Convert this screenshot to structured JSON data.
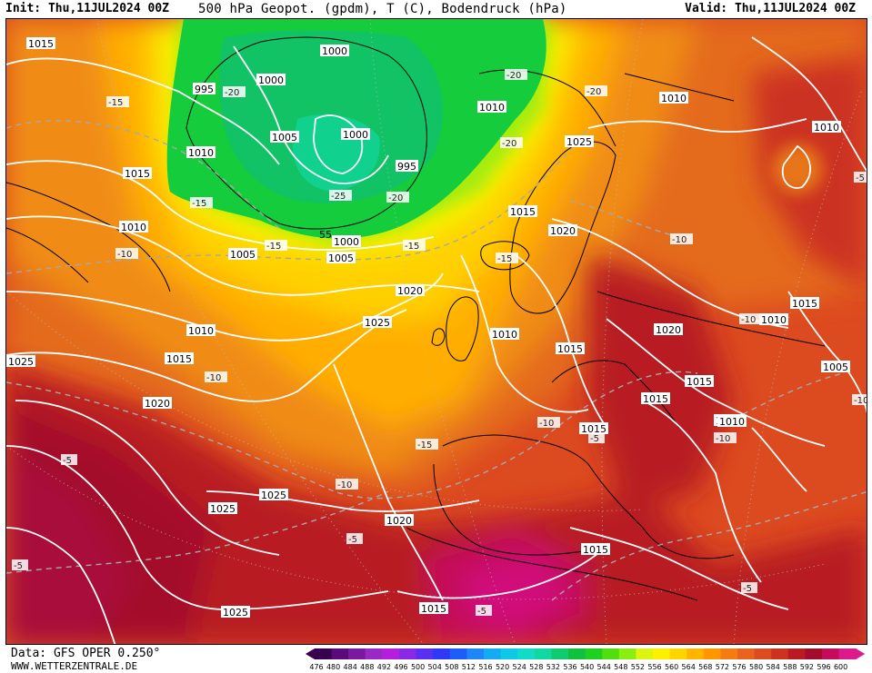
{
  "header": {
    "init": "Init: Thu,11JUL2024 00Z",
    "title": "500 hPa Geopot. (gpdm), T (C), Bodendruck (hPa)",
    "valid": "Valid: Thu,11JUL2024 00Z"
  },
  "footer": {
    "data_source": "Data: GFS OPER 0.250°",
    "website": "WWW.WETTERZENTRALE.DE"
  },
  "legend": {
    "ticks": [
      "476",
      "480",
      "484",
      "488",
      "492",
      "496",
      "500",
      "504",
      "508",
      "512",
      "516",
      "520",
      "524",
      "528",
      "532",
      "536",
      "540",
      "544",
      "548",
      "552",
      "556",
      "560",
      "564",
      "568",
      "572",
      "576",
      "580",
      "584",
      "588",
      "592",
      "596",
      "600"
    ],
    "colors": [
      "#3a0050",
      "#5a0a7a",
      "#7a1aa0",
      "#9a28c4",
      "#b41edc",
      "#8a28e6",
      "#5a30f0",
      "#3038f8",
      "#1e5ef8",
      "#1e86f8",
      "#14aaf4",
      "#10c8e8",
      "#10dcc8",
      "#10d8a0",
      "#10cc70",
      "#12c040",
      "#20d020",
      "#50e010",
      "#8aee10",
      "#dcf410",
      "#fff000",
      "#ffd400",
      "#ffb400",
      "#ff9800",
      "#f47c10",
      "#e8641e",
      "#dc4c20",
      "#cc3220",
      "#b81c22",
      "#a40c2c",
      "#c40c5a",
      "#dc1a8c"
    ],
    "arrow_left_color": "#3a0050",
    "arrow_right_color": "#dc1a8c"
  },
  "map": {
    "isobar_labels": [
      {
        "text": "1015",
        "id": "a"
      },
      {
        "text": "995",
        "id": "b"
      },
      {
        "text": "1000",
        "id": "c"
      },
      {
        "text": "1000",
        "id": "d"
      },
      {
        "text": "1010",
        "id": "e"
      },
      {
        "text": "1015",
        "id": "f"
      },
      {
        "text": "1005",
        "id": "g"
      },
      {
        "text": "1000",
        "id": "h"
      },
      {
        "text": "995",
        "id": "i"
      },
      {
        "text": "1010",
        "id": "j"
      },
      {
        "text": "1010",
        "id": "k"
      },
      {
        "text": "1025",
        "id": "l"
      },
      {
        "text": "1010",
        "id": "m"
      },
      {
        "text": "1010",
        "id": "n"
      },
      {
        "text": "1005",
        "id": "o"
      },
      {
        "text": "1000",
        "id": "p"
      },
      {
        "text": "1005",
        "id": "q"
      },
      {
        "text": "1015",
        "id": "r"
      },
      {
        "text": "1020",
        "id": "s"
      },
      {
        "text": "1020",
        "id": "t"
      },
      {
        "text": "1025",
        "id": "u"
      },
      {
        "text": "1010",
        "id": "v"
      },
      {
        "text": "1010",
        "id": "w"
      },
      {
        "text": "1015",
        "id": "x"
      },
      {
        "text": "1025",
        "id": "y"
      },
      {
        "text": "1015",
        "id": "z"
      },
      {
        "text": "1020",
        "id": "aa"
      },
      {
        "text": "1020",
        "id": "ab"
      },
      {
        "text": "1015",
        "id": "ac"
      },
      {
        "text": "1010",
        "id": "ad"
      },
      {
        "text": "1015",
        "id": "ae"
      },
      {
        "text": "1015",
        "id": "af"
      },
      {
        "text": "1005",
        "id": "ag"
      },
      {
        "text": "1010",
        "id": "ah"
      },
      {
        "text": "1015",
        "id": "ai"
      },
      {
        "text": "1025",
        "id": "aj"
      },
      {
        "text": "1025",
        "id": "ak"
      },
      {
        "text": "1020",
        "id": "al"
      },
      {
        "text": "1015",
        "id": "am"
      },
      {
        "text": "1025",
        "id": "an"
      },
      {
        "text": "1015",
        "id": "ao"
      },
      {
        "text": "1010",
        "id": "ap"
      }
    ],
    "temp_labels": [
      {
        "text": "-15"
      },
      {
        "text": "-20"
      },
      {
        "text": "-20"
      },
      {
        "text": "-20"
      },
      {
        "text": "-20"
      },
      {
        "text": "-25"
      },
      {
        "text": "-20"
      },
      {
        "text": "-15"
      },
      {
        "text": "-15"
      },
      {
        "text": "-10"
      },
      {
        "text": "-15"
      },
      {
        "text": "-15"
      },
      {
        "text": "-10"
      },
      {
        "text": "-10"
      },
      {
        "text": "-10"
      },
      {
        "text": "-15"
      },
      {
        "text": "-10"
      },
      {
        "text": "-5"
      },
      {
        "text": "-10"
      },
      {
        "text": "-5"
      },
      {
        "text": "-5"
      },
      {
        "text": "-5"
      },
      {
        "text": "-10"
      },
      {
        "text": "-5"
      },
      {
        "text": "-5"
      },
      {
        "text": "-5"
      },
      {
        "text": "-10"
      }
    ],
    "height_label": "55"
  }
}
